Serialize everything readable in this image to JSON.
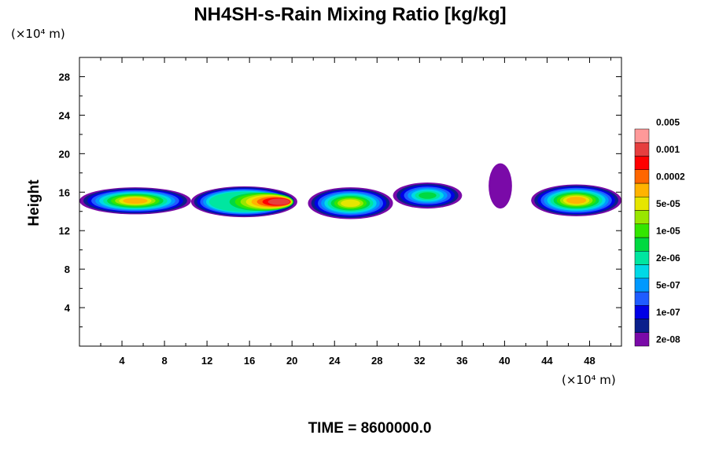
{
  "chart_data": {
    "type": "heatmap",
    "title": "NH4SH-s-Rain Mixing Ratio [kg/kg]",
    "ylabel": "Height",
    "x_unit": "(×10⁴ m)",
    "y_unit": "(×10⁴ m)",
    "xlim": [
      0,
      51
    ],
    "ylim": [
      0,
      30
    ],
    "x_ticks": [
      4,
      8,
      12,
      16,
      20,
      24,
      28,
      32,
      36,
      40,
      44,
      48
    ],
    "y_ticks": [
      4,
      8,
      12,
      16,
      20,
      24,
      28
    ],
    "grid": false,
    "colorbar": {
      "placement": "right",
      "colors": [
        "#7a0aa8",
        "#0a1f8c",
        "#0000e6",
        "#1f5cff",
        "#0099ff",
        "#00d9e6",
        "#00e6a0",
        "#00d940",
        "#33e600",
        "#99e600",
        "#e6e600",
        "#ffb300",
        "#ff6600",
        "#ff0000",
        "#e63e3e",
        "#ff9999"
      ],
      "labels": [
        "2e-08",
        "1e-07",
        "5e-07",
        "2e-06",
        "1e-05",
        "5e-05",
        "0.0002",
        "0.001",
        "0.005"
      ]
    },
    "features": [
      {
        "x": [
          0,
          10.5
        ],
        "y": [
          13.7,
          16.5
        ],
        "peak_level": 11
      },
      {
        "x": [
          10.5,
          20.5
        ],
        "y": [
          13.4,
          16.6
        ],
        "peak_level": 14
      },
      {
        "x": [
          21.5,
          29.5
        ],
        "y": [
          13.2,
          16.5
        ],
        "peak_level": 10
      },
      {
        "x": [
          29.5,
          36
        ],
        "y": [
          14.3,
          17.0
        ],
        "peak_level": 7
      },
      {
        "x": [
          38.5,
          40.7
        ],
        "y": [
          14.3,
          19.0
        ],
        "peak_level": 0
      },
      {
        "x": [
          42.5,
          51
        ],
        "y": [
          13.5,
          16.8
        ],
        "peak_level": 11
      }
    ]
  },
  "footer": {
    "time_label": "TIME = 8600000.0"
  }
}
